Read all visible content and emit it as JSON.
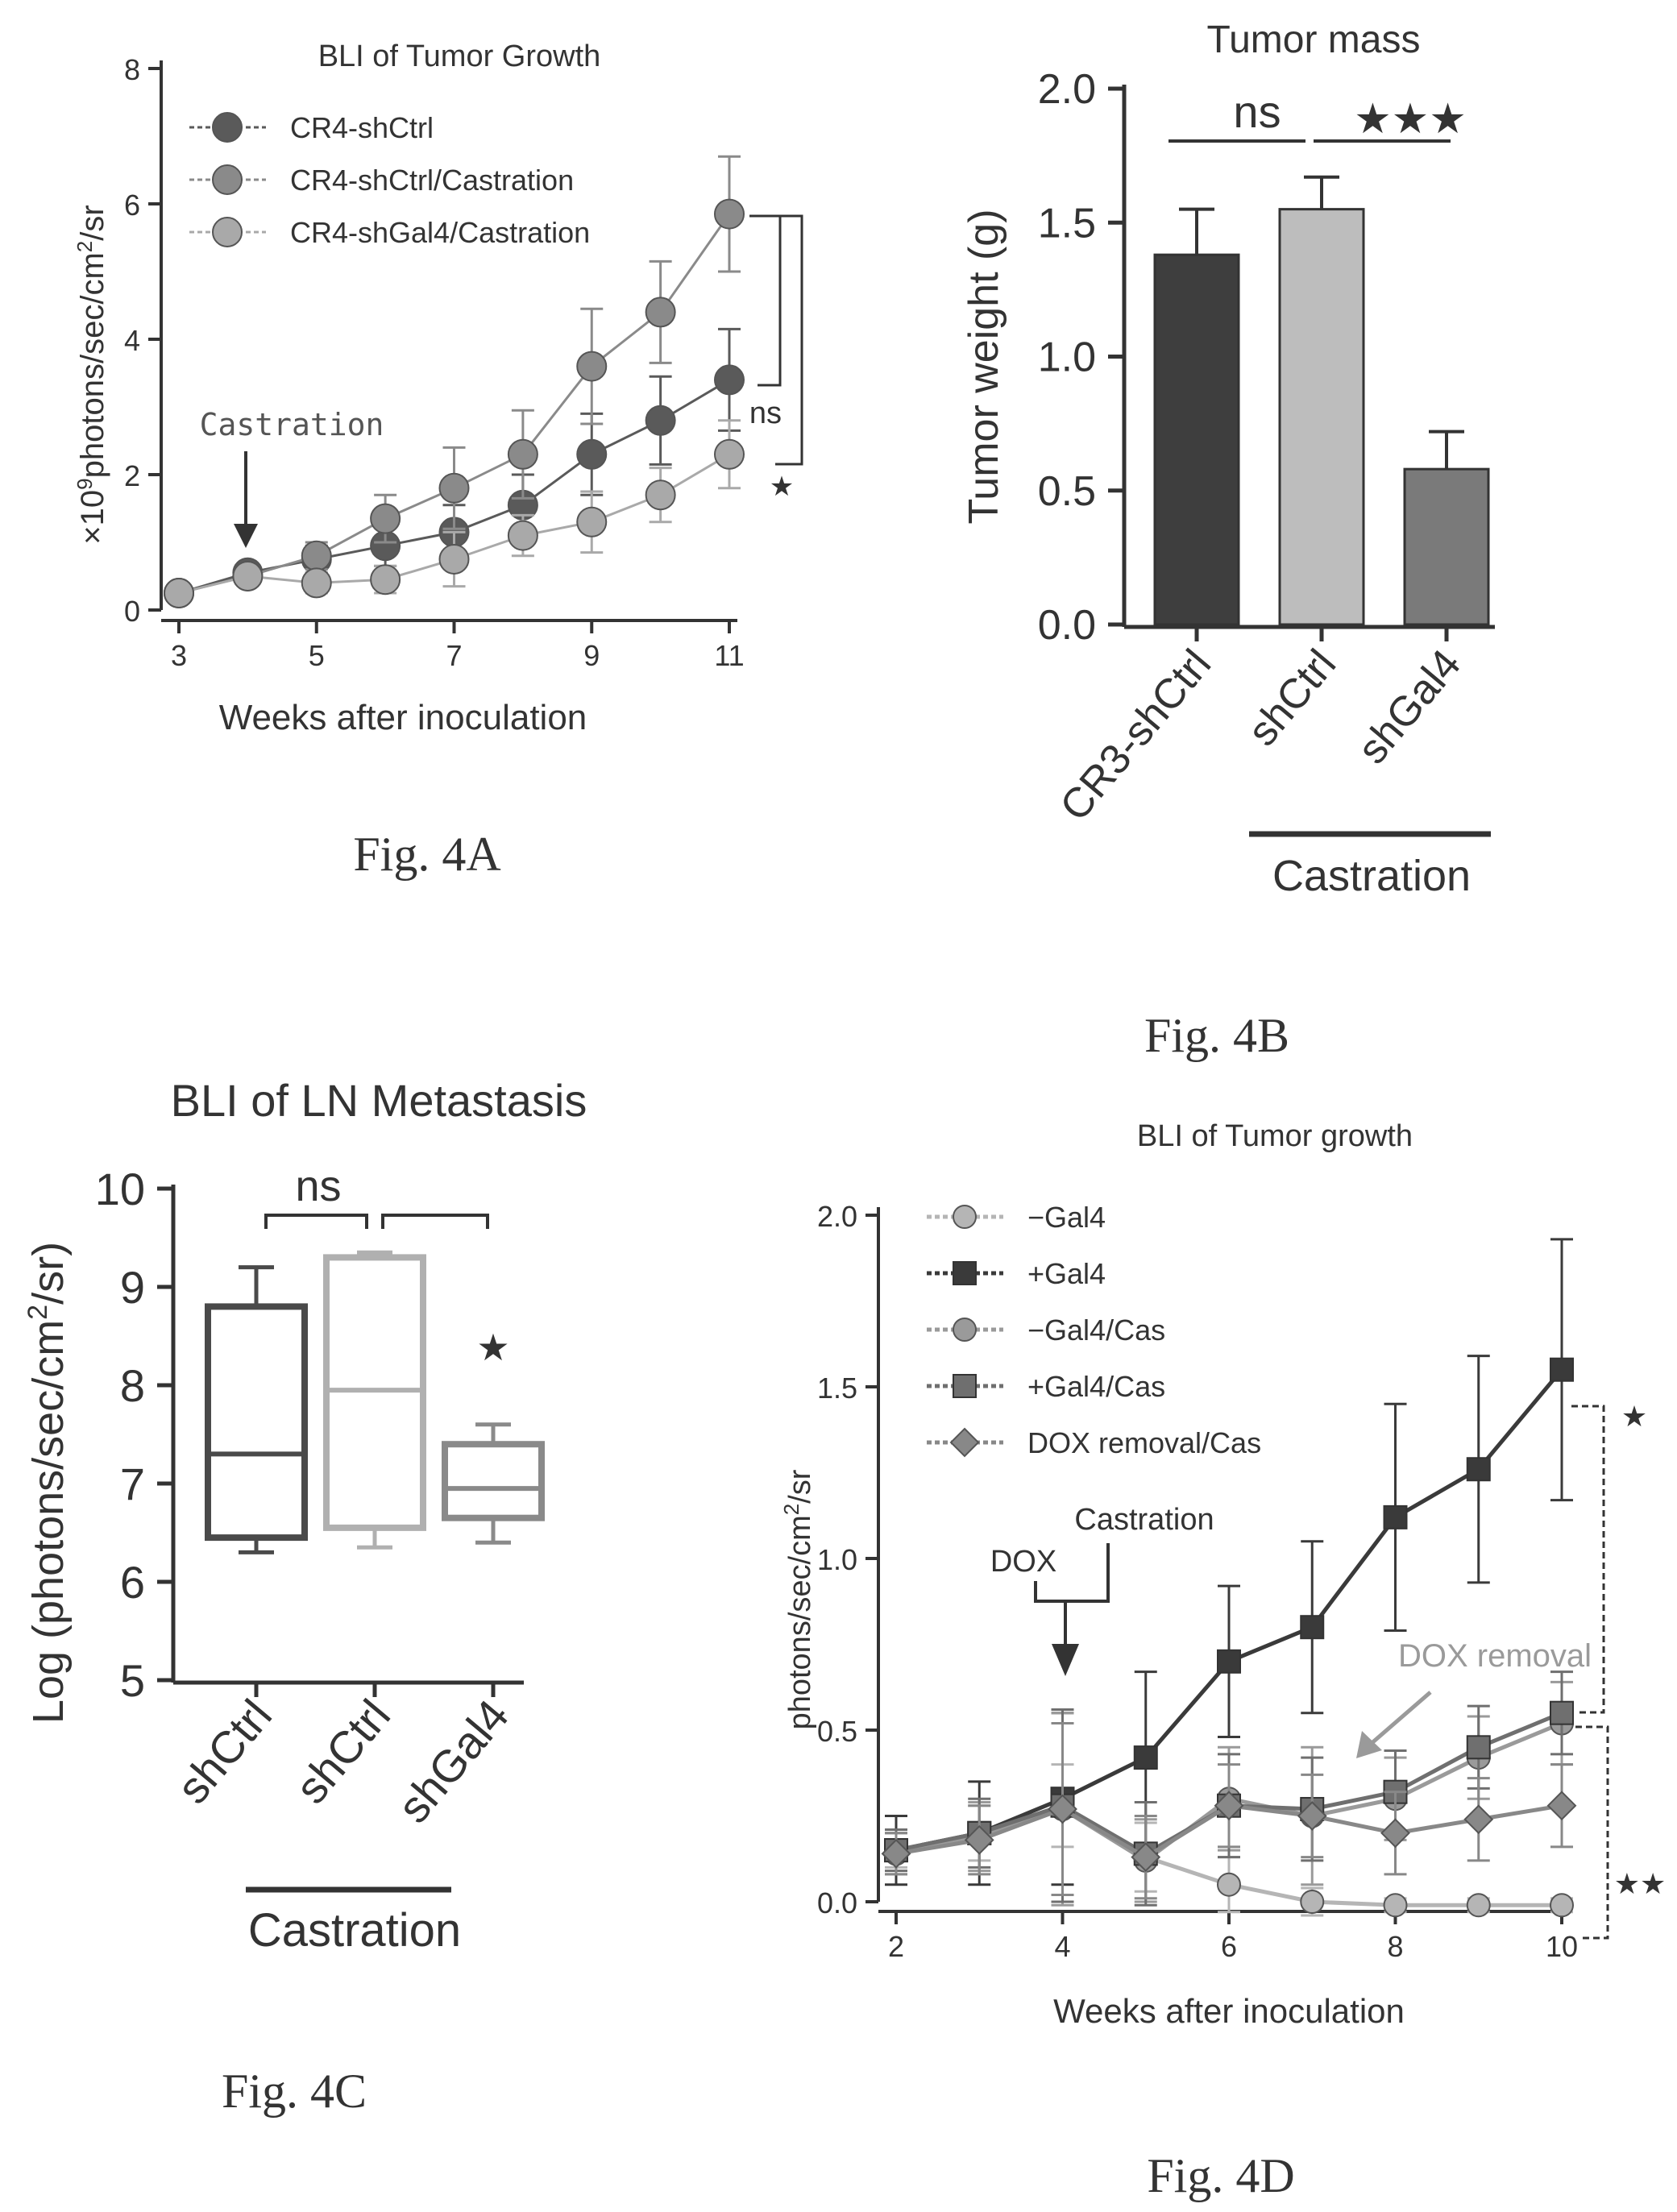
{
  "captions": {
    "a": "Fig. 4A",
    "b": "Fig. 4B",
    "c": "Fig. 4C",
    "d": "Fig. 4D"
  },
  "panel_a": {
    "title": "BLI of Tumor Growth",
    "xlabel": "Weeks after inoculation",
    "ylabel_pre": "×10",
    "ylabel_sup": "9",
    "ylabel_mid": "photons/sec/cm",
    "ylabel_sup2": "2",
    "ylabel_post": "/sr",
    "annotation": "Castration",
    "sig_ns": "ns",
    "sig_star": "★"
  },
  "panel_b": {
    "title": "Tumor mass",
    "ylabel": "Tumor weight (g)",
    "sig_ns": "ns",
    "sig_stars": "★★★",
    "group_label": "Castration"
  },
  "panel_c": {
    "title": "BLI of LN Metastasis",
    "ylabel_pre": "Log (photons/sec/cm",
    "ylabel_sup": "2",
    "ylabel_post": "/sr)",
    "sig_ns": "ns",
    "sig_star": "★",
    "group_label": "Castration"
  },
  "panel_d": {
    "title": "BLI of Tumor growth",
    "xlabel": "Weeks after inoculation",
    "ylabel_pre": "photons/sec/cm",
    "ylabel_sup": "2",
    "ylabel_post": "/sr",
    "ann_dox": "DOX",
    "ann_castration": "Castration",
    "ann_dox_removal": "DOX removal",
    "sig_star": "★",
    "sig_stars": "★★"
  },
  "chart_data": [
    {
      "type": "line",
      "title": "BLI of Tumor Growth",
      "xlabel": "Weeks after inoculation",
      "ylabel": "×10^9 photons/sec/cm^2/sr",
      "xlim": [
        3,
        11
      ],
      "ylim": [
        0,
        8
      ],
      "xticks": [
        "3",
        "5",
        "7",
        "9",
        "11"
      ],
      "yticks": [
        "0",
        "2",
        "4",
        "6",
        "8"
      ],
      "x": [
        3,
        4,
        5,
        6,
        7,
        8,
        9,
        10,
        11
      ],
      "series": [
        {
          "name": "CR4-shCtrl",
          "color": "#5a5a5a",
          "values": [
            0.25,
            0.55,
            0.75,
            0.95,
            1.15,
            1.55,
            2.3,
            2.8,
            3.4
          ],
          "errors": [
            0.05,
            0.1,
            0.2,
            0.3,
            0.4,
            0.45,
            0.6,
            0.65,
            0.75
          ]
        },
        {
          "name": "CR4-shCtrl/Castration",
          "color": "#8a8a8a",
          "values": [
            0.25,
            0.5,
            0.8,
            1.35,
            1.8,
            2.3,
            3.6,
            4.4,
            5.85
          ],
          "errors": [
            0.05,
            0.1,
            0.2,
            0.35,
            0.6,
            0.65,
            0.85,
            0.75,
            0.85
          ]
        },
        {
          "name": "CR4-shGal4/Castration",
          "color": "#a9a9a9",
          "values": [
            0.25,
            0.5,
            0.4,
            0.45,
            0.75,
            1.1,
            1.3,
            1.7,
            2.3
          ],
          "errors": [
            0.05,
            0.1,
            0.15,
            0.2,
            0.4,
            0.3,
            0.45,
            0.4,
            0.5
          ]
        }
      ]
    },
    {
      "type": "bar",
      "title": "Tumor mass",
      "ylabel": "Tumor weight (g)",
      "ylim": [
        0,
        2.0
      ],
      "yticks": [
        "0.0",
        "0.5",
        "1.0",
        "1.5",
        "2.0"
      ],
      "categories": [
        "CR3-shCtrl",
        "shCtrl",
        "shGal4"
      ],
      "values": [
        1.38,
        1.55,
        0.58
      ],
      "errors": [
        0.17,
        0.12,
        0.14
      ],
      "colors": [
        "#3e3e3e",
        "#bdbdbd",
        "#7a7a7a"
      ]
    },
    {
      "type": "box",
      "title": "BLI of LN Metastasis",
      "ylabel": "Log (photons/sec/cm^2/sr)",
      "ylim": [
        5,
        10
      ],
      "yticks": [
        "5",
        "6",
        "7",
        "8",
        "9",
        "10"
      ],
      "categories": [
        "shCtrl",
        "shCtrl",
        "shGal4"
      ],
      "boxes": [
        {
          "min": 6.3,
          "q1": 6.45,
          "median": 7.3,
          "q3": 8.8,
          "max": 9.2,
          "color": "#4a4a4a"
        },
        {
          "min": 6.35,
          "q1": 6.55,
          "median": 7.95,
          "q3": 9.3,
          "max": 9.35,
          "color": "#b0b0b0"
        },
        {
          "min": 6.4,
          "q1": 6.65,
          "median": 6.95,
          "q3": 7.4,
          "max": 7.6,
          "color": "#8a8a8a"
        }
      ]
    },
    {
      "type": "line",
      "title": "BLI of Tumor growth",
      "xlabel": "Weeks after inoculation",
      "ylabel": "photons/sec/cm^2/sr",
      "xlim": [
        2,
        10
      ],
      "ylim": [
        0,
        2.0
      ],
      "xticks": [
        "2",
        "4",
        "6",
        "8",
        "10"
      ],
      "yticks": [
        "0.0",
        "0.5",
        "1.0",
        "1.5",
        "2.0"
      ],
      "x": [
        2,
        3,
        4,
        5,
        6,
        7,
        8,
        9,
        10
      ],
      "series": [
        {
          "name": "−Gal4",
          "color": "#b5b5b5",
          "marker": "circle",
          "values": [
            0.15,
            0.2,
            0.28,
            0.13,
            0.05,
            0.0,
            -0.01,
            -0.01,
            -0.01
          ],
          "errors": [
            0.05,
            0.08,
            0.12,
            0.1,
            0.08,
            0.04,
            0.02,
            0.02,
            0.02
          ]
        },
        {
          "name": "+Gal4",
          "color": "#3a3a3a",
          "marker": "square",
          "values": [
            0.15,
            0.2,
            0.3,
            0.42,
            0.7,
            0.8,
            1.12,
            1.26,
            1.55
          ],
          "errors": [
            0.1,
            0.15,
            0.25,
            0.25,
            0.22,
            0.25,
            0.33,
            0.33,
            0.38
          ]
        },
        {
          "name": "−Gal4/Cas",
          "color": "#9a9a9a",
          "marker": "circle",
          "values": [
            0.14,
            0.19,
            0.27,
            0.12,
            0.3,
            0.25,
            0.3,
            0.42,
            0.52
          ],
          "errors": [
            0.06,
            0.1,
            0.28,
            0.12,
            0.15,
            0.2,
            0.12,
            0.12,
            0.12
          ]
        },
        {
          "name": "+Gal4/Cas",
          "color": "#6f6f6f",
          "marker": "square",
          "values": [
            0.15,
            0.2,
            0.28,
            0.14,
            0.28,
            0.27,
            0.32,
            0.45,
            0.55
          ],
          "errors": [
            0.06,
            0.1,
            0.28,
            0.15,
            0.15,
            0.15,
            0.12,
            0.12,
            0.12
          ]
        },
        {
          "name": "DOX removal/Cas",
          "color": "#888888",
          "marker": "diamond",
          "values": [
            0.14,
            0.18,
            0.27,
            0.13,
            0.28,
            0.25,
            0.2,
            0.24,
            0.28
          ],
          "errors": [
            0.06,
            0.1,
            0.25,
            0.12,
            0.12,
            0.12,
            0.12,
            0.12,
            0.12
          ]
        }
      ]
    }
  ]
}
